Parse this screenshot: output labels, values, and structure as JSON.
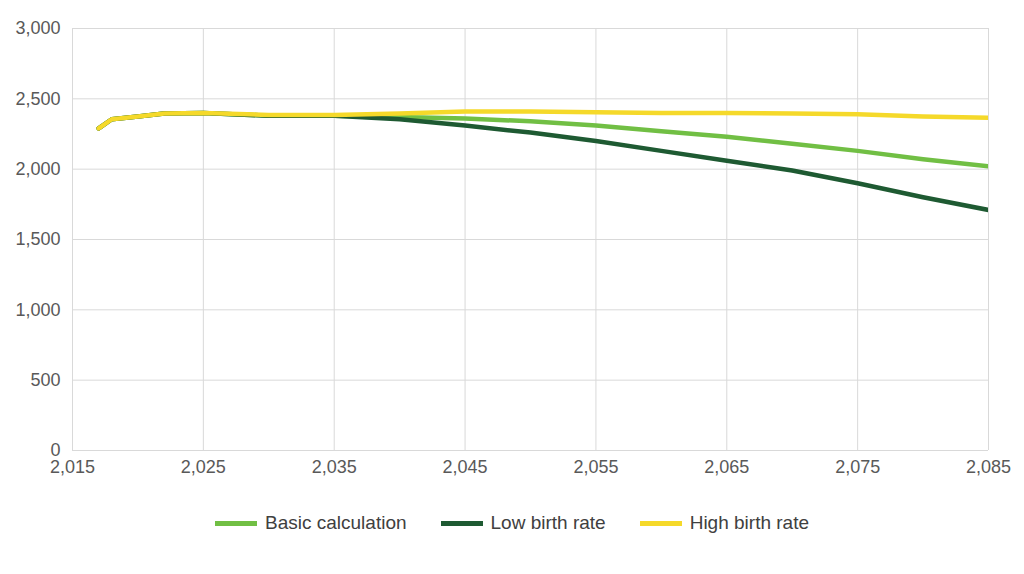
{
  "chart_data": {
    "type": "line",
    "x": [
      2017,
      2018,
      2020,
      2022,
      2025,
      2030,
      2035,
      2040,
      2045,
      2050,
      2055,
      2060,
      2065,
      2070,
      2075,
      2080,
      2085
    ],
    "series": [
      {
        "name": "Basic calculation",
        "color": "#71bf44",
        "values": [
          2290,
          2355,
          2375,
          2395,
          2400,
          2380,
          2380,
          2370,
          2360,
          2340,
          2310,
          2270,
          2230,
          2180,
          2130,
          2070,
          2020
        ]
      },
      {
        "name": "Low birth rate",
        "color": "#1e5a32",
        "values": [
          2290,
          2355,
          2375,
          2395,
          2400,
          2380,
          2380,
          2355,
          2310,
          2260,
          2200,
          2130,
          2060,
          1990,
          1900,
          1800,
          1710
        ]
      },
      {
        "name": "High birth rate",
        "color": "#f5d92a",
        "values": [
          2290,
          2355,
          2375,
          2395,
          2400,
          2385,
          2385,
          2395,
          2410,
          2410,
          2405,
          2400,
          2400,
          2395,
          2390,
          2375,
          2365
        ]
      }
    ],
    "xlim": [
      2015,
      2085
    ],
    "xticks": [
      2015,
      2025,
      2035,
      2045,
      2055,
      2065,
      2075,
      2085
    ],
    "ylim": [
      0,
      3000
    ],
    "yticks": [
      0,
      500,
      1000,
      1500,
      2000,
      2500,
      3000
    ],
    "grid": true,
    "legend": "bottom"
  }
}
